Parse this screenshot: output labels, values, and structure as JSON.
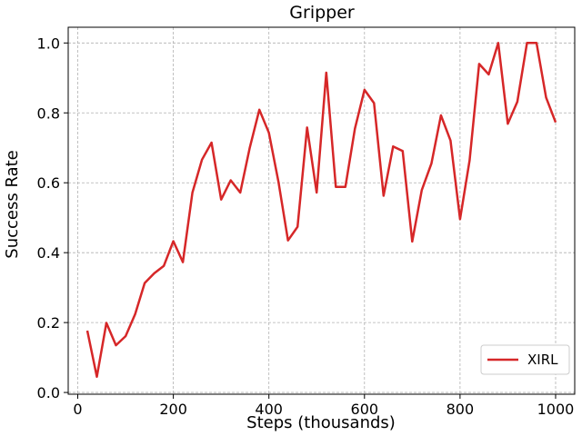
{
  "chart_data": {
    "type": "line",
    "title": "Gripper",
    "xlabel": "Steps (thousands)",
    "ylabel": "Success Rate",
    "xlim": [
      -20,
      1040
    ],
    "ylim": [
      -0.005,
      1.045
    ],
    "xticks": [
      0,
      200,
      400,
      600,
      800,
      1000
    ],
    "yticks": [
      0.0,
      0.2,
      0.4,
      0.6,
      0.8,
      1.0
    ],
    "grid": true,
    "legend_position": "lower-right",
    "series": [
      {
        "name": "XIRL",
        "color": "#d62728",
        "x": [
          20,
          40,
          60,
          80,
          100,
          120,
          140,
          160,
          180,
          200,
          220,
          240,
          260,
          280,
          300,
          320,
          340,
          360,
          380,
          400,
          420,
          440,
          460,
          480,
          500,
          520,
          540,
          560,
          580,
          600,
          620,
          640,
          660,
          680,
          700,
          720,
          740,
          760,
          780,
          800,
          820,
          840,
          860,
          880,
          900,
          920,
          940,
          960,
          980,
          1000
        ],
        "y": [
          0.177,
          0.045,
          0.199,
          0.135,
          0.161,
          0.224,
          0.313,
          0.341,
          0.362,
          0.433,
          0.373,
          0.572,
          0.666,
          0.715,
          0.552,
          0.607,
          0.572,
          0.701,
          0.809,
          0.743,
          0.603,
          0.435,
          0.474,
          0.758,
          0.572,
          0.915,
          0.588,
          0.588,
          0.755,
          0.866,
          0.828,
          0.563,
          0.704,
          0.691,
          0.432,
          0.579,
          0.655,
          0.793,
          0.721,
          0.496,
          0.664,
          0.94,
          0.91,
          1.0,
          0.769,
          0.832,
          1.0,
          1.0,
          0.844,
          0.773
        ]
      }
    ]
  }
}
